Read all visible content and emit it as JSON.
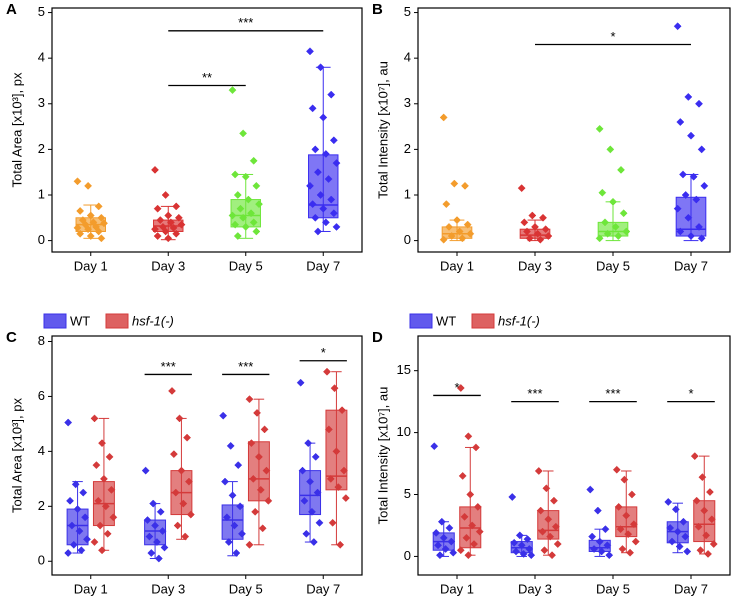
{
  "chart_data": [
    {
      "type": "box",
      "panel_label": "A",
      "ylabel": "Total Area [x10³], px",
      "categories": [
        "Day 1",
        "Day 3",
        "Day 5",
        "Day 7"
      ],
      "ylim": [
        -0.25,
        5.1
      ],
      "yticks": [
        0,
        1,
        2,
        3,
        4,
        5
      ],
      "series": [
        {
          "boxes": [
            {
              "color": "#f39c2c",
              "whisker_low": 0.05,
              "q1": 0.2,
              "median": 0.35,
              "q3": 0.5,
              "whisker_high": 0.78,
              "points": [
                1.3,
                1.2,
                0.75,
                0.65,
                0.55,
                0.5,
                0.45,
                0.4,
                0.38,
                0.35,
                0.3,
                0.28,
                0.25,
                0.2,
                0.15,
                0.1,
                0.05
              ]
            },
            {
              "color": "#d93333",
              "whisker_low": 0.02,
              "q1": 0.2,
              "median": 0.32,
              "q3": 0.45,
              "whisker_high": 0.75,
              "points": [
                1.55,
                1.0,
                0.75,
                0.7,
                0.55,
                0.5,
                0.45,
                0.4,
                0.35,
                0.3,
                0.28,
                0.25,
                0.2,
                0.15,
                0.1,
                0.05
              ]
            },
            {
              "color": "#6ee63a",
              "whisker_low": 0.05,
              "q1": 0.3,
              "median": 0.55,
              "q3": 0.9,
              "whisker_high": 1.45,
              "points": [
                3.3,
                2.35,
                1.75,
                1.45,
                1.4,
                1.2,
                1.0,
                0.9,
                0.8,
                0.7,
                0.6,
                0.55,
                0.5,
                0.4,
                0.35,
                0.3,
                0.2,
                0.1
              ]
            },
            {
              "color": "#3a2df0",
              "whisker_low": 0.2,
              "q1": 0.5,
              "median": 0.78,
              "q3": 1.88,
              "whisker_high": 3.8,
              "points": [
                4.15,
                3.8,
                3.2,
                2.9,
                2.7,
                2.2,
                2.0,
                1.9,
                1.7,
                1.5,
                1.35,
                1.2,
                1.0,
                0.9,
                0.8,
                0.7,
                0.6,
                0.5,
                0.4,
                0.3,
                0.2
              ]
            }
          ]
        }
      ],
      "annotations": [
        {
          "text": "***",
          "from": "Day 3",
          "to": "Day 7",
          "y": 4.6
        },
        {
          "text": "**",
          "from": "Day 3",
          "to": "Day 5",
          "y": 3.4
        }
      ]
    },
    {
      "type": "box",
      "panel_label": "B",
      "ylabel": "Total Intensity  [x10⁷], au",
      "categories": [
        "Day 1",
        "Day 3",
        "Day 5",
        "Day 7"
      ],
      "ylim": [
        -0.25,
        5.1
      ],
      "yticks": [
        0,
        1,
        2,
        3,
        4,
        5
      ],
      "series": [
        {
          "boxes": [
            {
              "color": "#f39c2c",
              "whisker_low": 0,
              "q1": 0.05,
              "median": 0.15,
              "q3": 0.3,
              "whisker_high": 0.45,
              "points": [
                2.7,
                1.25,
                1.2,
                0.8,
                0.45,
                0.35,
                0.3,
                0.2,
                0.15,
                0.1,
                0.05,
                0.02
              ]
            },
            {
              "color": "#d93333",
              "whisker_low": 0,
              "q1": 0.05,
              "median": 0.12,
              "q3": 0.25,
              "whisker_high": 0.45,
              "points": [
                1.15,
                0.55,
                0.5,
                0.4,
                0.3,
                0.25,
                0.2,
                0.15,
                0.1,
                0.05,
                0.02
              ]
            },
            {
              "color": "#6ee63a",
              "whisker_low": 0,
              "q1": 0.1,
              "median": 0.2,
              "q3": 0.4,
              "whisker_high": 0.85,
              "points": [
                2.45,
                2.0,
                1.55,
                1.05,
                0.85,
                0.6,
                0.4,
                0.3,
                0.2,
                0.15,
                0.1,
                0.05
              ]
            },
            {
              "color": "#3a2df0",
              "whisker_low": 0,
              "q1": 0.1,
              "median": 0.25,
              "q3": 0.95,
              "whisker_high": 1.45,
              "points": [
                4.7,
                3.15,
                3.0,
                2.6,
                2.3,
                2.0,
                1.45,
                1.4,
                1.2,
                1.0,
                0.9,
                0.7,
                0.5,
                0.3,
                0.2,
                0.1,
                0.05
              ]
            }
          ]
        }
      ],
      "annotations": [
        {
          "text": "*",
          "from": "Day 3",
          "to": "Day 7",
          "y": 4.3
        }
      ]
    },
    {
      "type": "box",
      "panel_label": "C",
      "ylabel": "Total Area [x10³], px",
      "categories": [
        "Day 1",
        "Day 3",
        "Day 5",
        "Day 7"
      ],
      "ylim": [
        -0.5,
        8.2
      ],
      "yticks": [
        0,
        2,
        4,
        6,
        8
      ],
      "series": [
        {
          "name": "WT",
          "color": "#3a30e8",
          "boxes": [
            {
              "whisker_low": 0.3,
              "q1": 0.6,
              "median": 1.3,
              "q3": 1.9,
              "whisker_high": 2.9,
              "points": [
                5.05,
                2.8,
                2.5,
                2.2,
                1.9,
                1.6,
                1.3,
                1.1,
                0.8,
                0.6,
                0.4,
                0.3
              ]
            },
            {
              "whisker_low": 0.1,
              "q1": 0.6,
              "median": 1.1,
              "q3": 1.5,
              "whisker_high": 2.1,
              "points": [
                3.3,
                2.1,
                1.8,
                1.5,
                1.3,
                1.1,
                0.9,
                0.7,
                0.5,
                0.3,
                0.1
              ]
            },
            {
              "whisker_low": 0.2,
              "q1": 0.8,
              "median": 1.5,
              "q3": 2.05,
              "whisker_high": 2.9,
              "points": [
                5.3,
                4.2,
                3.5,
                2.9,
                2.4,
                2.0,
                1.6,
                1.3,
                1.0,
                0.7,
                0.3
              ]
            },
            {
              "whisker_low": 0.7,
              "q1": 1.7,
              "median": 2.4,
              "q3": 3.3,
              "whisker_high": 4.3,
              "points": [
                6.5,
                4.3,
                3.8,
                3.3,
                2.9,
                2.5,
                2.2,
                1.8,
                1.4,
                1.0,
                0.7
              ]
            }
          ]
        },
        {
          "name": "hsf-1(-)",
          "color": "#d43a3a",
          "font_style": "italic",
          "boxes": [
            {
              "whisker_low": 0.4,
              "q1": 1.3,
              "median": 2.1,
              "q3": 2.9,
              "whisker_high": 5.2,
              "points": [
                5.2,
                4.3,
                3.8,
                3.5,
                3.0,
                2.6,
                2.2,
                2.0,
                1.6,
                1.3,
                1.0,
                0.7,
                0.4
              ]
            },
            {
              "whisker_low": 0.8,
              "q1": 1.7,
              "median": 2.5,
              "q3": 3.3,
              "whisker_high": 5.2,
              "points": [
                6.2,
                5.2,
                4.5,
                3.9,
                3.3,
                2.9,
                2.5,
                2.1,
                1.7,
                1.3,
                0.9
              ]
            },
            {
              "whisker_low": 0.6,
              "q1": 2.2,
              "median": 3.0,
              "q3": 4.35,
              "whisker_high": 5.9,
              "points": [
                5.9,
                5.4,
                4.8,
                4.3,
                3.8,
                3.3,
                3.0,
                2.6,
                2.2,
                1.8,
                1.2,
                0.6
              ]
            },
            {
              "whisker_low": 0.6,
              "q1": 2.6,
              "median": 3.1,
              "q3": 5.5,
              "whisker_high": 6.9,
              "points": [
                6.9,
                6.3,
                5.5,
                4.8,
                4.0,
                3.3,
                3.0,
                2.7,
                2.3,
                1.4,
                0.6
              ]
            }
          ]
        }
      ],
      "annotations": [
        {
          "text": "***",
          "category": "Day 3",
          "y": 6.8
        },
        {
          "text": "***",
          "category": "Day 5",
          "y": 6.8
        },
        {
          "text": "*",
          "category": "Day 7",
          "y": 7.3
        }
      ]
    },
    {
      "type": "box",
      "panel_label": "D",
      "ylabel": "Total Intensity  [x10⁷], au",
      "categories": [
        "Day 1",
        "Day 3",
        "Day 5",
        "Day 7"
      ],
      "ylim": [
        -1.5,
        17.8
      ],
      "yticks": [
        0,
        5,
        10,
        15
      ],
      "series": [
        {
          "name": "WT",
          "color": "#3a30e8",
          "boxes": [
            {
              "whisker_low": 0,
              "q1": 0.5,
              "median": 1.2,
              "q3": 1.9,
              "whisker_high": 2.8,
              "points": [
                8.9,
                2.8,
                2.3,
                1.9,
                1.5,
                1.2,
                0.9,
                0.6,
                0.3,
                0.1
              ]
            },
            {
              "whisker_low": 0,
              "q1": 0.3,
              "median": 0.7,
              "q3": 1.2,
              "whisker_high": 1.7,
              "points": [
                4.8,
                1.7,
                1.4,
                1.1,
                0.9,
                0.6,
                0.4,
                0.2,
                0.1
              ]
            },
            {
              "whisker_low": 0,
              "q1": 0.4,
              "median": 0.7,
              "q3": 1.3,
              "whisker_high": 2.2,
              "points": [
                5.4,
                3.7,
                2.2,
                1.6,
                1.2,
                0.9,
                0.6,
                0.4,
                0.1
              ]
            },
            {
              "whisker_low": 0.3,
              "q1": 1.1,
              "median": 2.0,
              "q3": 2.8,
              "whisker_high": 4.3,
              "points": [
                4.4,
                3.8,
                2.8,
                2.3,
                2.0,
                1.6,
                1.2,
                0.8,
                0.4
              ]
            }
          ]
        },
        {
          "name": "hsf-1(-)",
          "color": "#d43a3a",
          "font_style": "italic",
          "boxes": [
            {
              "whisker_low": 0.1,
              "q1": 0.7,
              "median": 2.3,
              "q3": 4.0,
              "whisker_high": 8.8,
              "points": [
                13.6,
                9.7,
                8.8,
                6.5,
                5.0,
                4.0,
                3.2,
                2.5,
                2.0,
                1.5,
                1.0,
                0.5,
                0.1
              ]
            },
            {
              "whisker_low": 0.1,
              "q1": 1.4,
              "median": 2.1,
              "q3": 3.7,
              "whisker_high": 6.9,
              "points": [
                6.9,
                5.5,
                4.5,
                3.7,
                3.0,
                2.4,
                2.0,
                1.6,
                1.0,
                0.5,
                0.1
              ]
            },
            {
              "whisker_low": 0.3,
              "q1": 1.6,
              "median": 2.4,
              "q3": 4.0,
              "whisker_high": 6.9,
              "points": [
                7.0,
                6.2,
                5.0,
                4.0,
                3.3,
                2.6,
                2.2,
                1.8,
                1.2,
                0.6,
                0.3
              ]
            },
            {
              "whisker_low": 0.2,
              "q1": 1.2,
              "median": 2.6,
              "q3": 4.5,
              "whisker_high": 8.1,
              "points": [
                8.1,
                6.4,
                5.2,
                4.5,
                3.7,
                3.0,
                2.4,
                1.7,
                1.0,
                0.5,
                0.2
              ]
            }
          ]
        }
      ],
      "annotations": [
        {
          "text": "*",
          "category": "Day 1",
          "y": 13
        },
        {
          "text": "***",
          "category": "Day 3",
          "y": 12.5
        },
        {
          "text": "***",
          "category": "Day 5",
          "y": 12.5
        },
        {
          "text": "*",
          "category": "Day 7",
          "y": 12.5
        }
      ]
    }
  ]
}
